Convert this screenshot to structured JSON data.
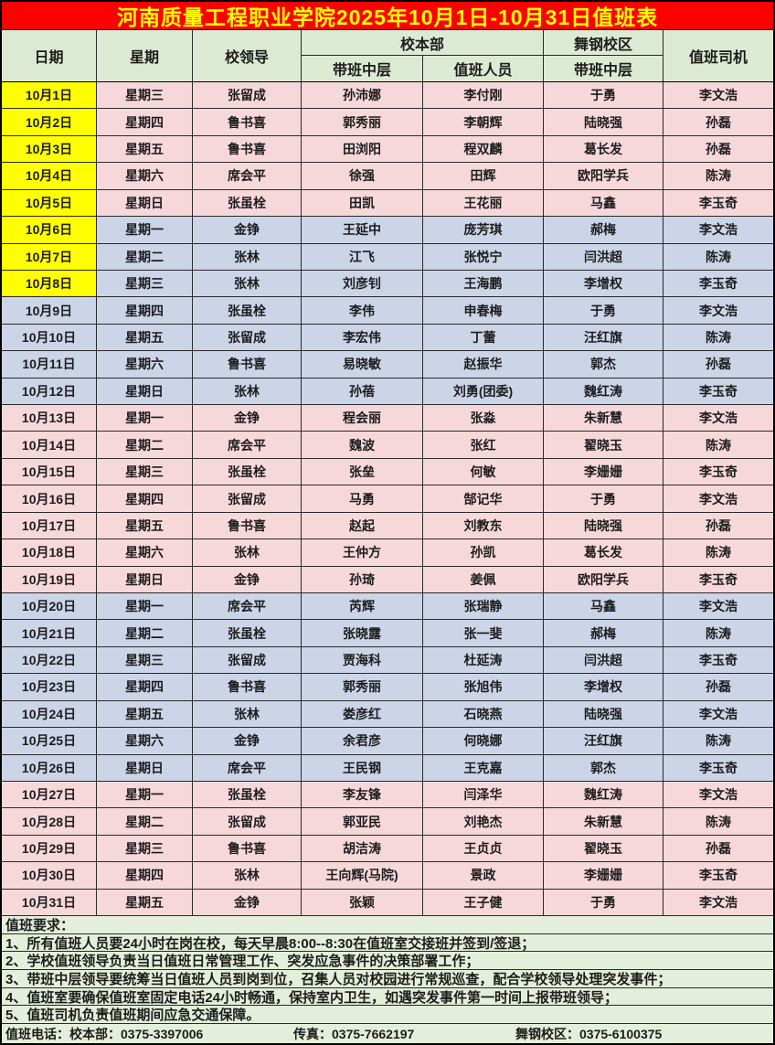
{
  "title": "河南质量工程职业学院2025年10月1日-10月31日值班表",
  "colors": {
    "title_bg": "#fe0000",
    "title_fg": "#ffff00",
    "header_bg": "#dcead3",
    "pink_row": "#f7d8da",
    "blue_row": "#ccd4e8",
    "yellow_date": "#ffff00",
    "notes_bg": "#e3efda"
  },
  "header": {
    "date": "日期",
    "weekday": "星期",
    "school_leader": "校领导",
    "main_campus": "校本部",
    "main_mid": "带班中层",
    "main_duty": "值班人员",
    "wugang_campus": "舞钢校区",
    "wugang_mid": "带班中层",
    "driver": "值班司机"
  },
  "rows": [
    {
      "date": "10月1日",
      "weekday": "星期三",
      "leader": "张留成",
      "main_mid": "孙沛娜",
      "main_duty": "李付刚",
      "wugang_mid": "于勇",
      "driver": "李文浩",
      "band": "pink",
      "date_highlight": true
    },
    {
      "date": "10月2日",
      "weekday": "星期四",
      "leader": "鲁书喜",
      "main_mid": "郭秀丽",
      "main_duty": "李朝辉",
      "wugang_mid": "陆晓强",
      "driver": "孙磊",
      "band": "pink",
      "date_highlight": true
    },
    {
      "date": "10月3日",
      "weekday": "星期五",
      "leader": "鲁书喜",
      "main_mid": "田浏阳",
      "main_duty": "程双麟",
      "wugang_mid": "葛长发",
      "driver": "孙磊",
      "band": "pink",
      "date_highlight": true
    },
    {
      "date": "10月4日",
      "weekday": "星期六",
      "leader": "席会平",
      "main_mid": "徐强",
      "main_duty": "田辉",
      "wugang_mid": "欧阳学兵",
      "driver": "陈涛",
      "band": "pink",
      "date_highlight": true
    },
    {
      "date": "10月5日",
      "weekday": "星期日",
      "leader": "张虽栓",
      "main_mid": "田凯",
      "main_duty": "王花丽",
      "wugang_mid": "马鑫",
      "driver": "李玉奇",
      "band": "pink",
      "date_highlight": true
    },
    {
      "date": "10月6日",
      "weekday": "星期一",
      "leader": "金铮",
      "main_mid": "王延中",
      "main_duty": "庞芳琪",
      "wugang_mid": "郝梅",
      "driver": "李文浩",
      "band": "blue",
      "date_highlight": true
    },
    {
      "date": "10月7日",
      "weekday": "星期二",
      "leader": "张林",
      "main_mid": "江飞",
      "main_duty": "张悦宁",
      "wugang_mid": "闫洪超",
      "driver": "陈涛",
      "band": "blue",
      "date_highlight": true
    },
    {
      "date": "10月8日",
      "weekday": "星期三",
      "leader": "张林",
      "main_mid": "刘彦钊",
      "main_duty": "王海鹏",
      "wugang_mid": "李增权",
      "driver": "李玉奇",
      "band": "blue",
      "date_highlight": true
    },
    {
      "date": "10月9日",
      "weekday": "星期四",
      "leader": "张虽栓",
      "main_mid": "李伟",
      "main_duty": "申春梅",
      "wugang_mid": "于勇",
      "driver": "李文浩",
      "band": "blue",
      "date_highlight": false
    },
    {
      "date": "10月10日",
      "weekday": "星期五",
      "leader": "张留成",
      "main_mid": "李宏伟",
      "main_duty": "丁蕾",
      "wugang_mid": "汪红旗",
      "driver": "陈涛",
      "band": "blue",
      "date_highlight": false
    },
    {
      "date": "10月11日",
      "weekday": "星期六",
      "leader": "鲁书喜",
      "main_mid": "易晓敏",
      "main_duty": "赵振华",
      "wugang_mid": "郭杰",
      "driver": "孙磊",
      "band": "blue",
      "date_highlight": false
    },
    {
      "date": "10月12日",
      "weekday": "星期日",
      "leader": "张林",
      "main_mid": "孙蓓",
      "main_duty": "刘勇(团委)",
      "wugang_mid": "魏红涛",
      "driver": "李玉奇",
      "band": "blue",
      "date_highlight": false
    },
    {
      "date": "10月13日",
      "weekday": "星期一",
      "leader": "金铮",
      "main_mid": "程会丽",
      "main_duty": "张淼",
      "wugang_mid": "朱新慧",
      "driver": "李文浩",
      "band": "pink",
      "date_highlight": false
    },
    {
      "date": "10月14日",
      "weekday": "星期二",
      "leader": "席会平",
      "main_mid": "魏波",
      "main_duty": "张红",
      "wugang_mid": "翟晓玉",
      "driver": "陈涛",
      "band": "pink",
      "date_highlight": false
    },
    {
      "date": "10月15日",
      "weekday": "星期三",
      "leader": "张虽栓",
      "main_mid": "张垒",
      "main_duty": "何敏",
      "wugang_mid": "李姗姗",
      "driver": "李玉奇",
      "band": "pink",
      "date_highlight": false
    },
    {
      "date": "10月16日",
      "weekday": "星期四",
      "leader": "张留成",
      "main_mid": "马勇",
      "main_duty": "郜记华",
      "wugang_mid": "于勇",
      "driver": "李文浩",
      "band": "pink",
      "date_highlight": false
    },
    {
      "date": "10月17日",
      "weekday": "星期五",
      "leader": "鲁书喜",
      "main_mid": "赵起",
      "main_duty": "刘教东",
      "wugang_mid": "陆晓强",
      "driver": "孙磊",
      "band": "pink",
      "date_highlight": false
    },
    {
      "date": "10月18日",
      "weekday": "星期六",
      "leader": "张林",
      "main_mid": "王仲方",
      "main_duty": "孙凯",
      "wugang_mid": "葛长发",
      "driver": "陈涛",
      "band": "pink",
      "date_highlight": false
    },
    {
      "date": "10月19日",
      "weekday": "星期日",
      "leader": "金铮",
      "main_mid": "孙琦",
      "main_duty": "姜佩",
      "wugang_mid": "欧阳学兵",
      "driver": "李玉奇",
      "band": "pink",
      "date_highlight": false
    },
    {
      "date": "10月20日",
      "weekday": "星期一",
      "leader": "席会平",
      "main_mid": "芮辉",
      "main_duty": "张瑞静",
      "wugang_mid": "马鑫",
      "driver": "李文浩",
      "band": "blue",
      "date_highlight": false
    },
    {
      "date": "10月21日",
      "weekday": "星期二",
      "leader": "张虽栓",
      "main_mid": "张晓露",
      "main_duty": "张一斐",
      "wugang_mid": "郝梅",
      "driver": "陈涛",
      "band": "blue",
      "date_highlight": false
    },
    {
      "date": "10月22日",
      "weekday": "星期三",
      "leader": "张留成",
      "main_mid": "贾海科",
      "main_duty": "杜延涛",
      "wugang_mid": "闫洪超",
      "driver": "李玉奇",
      "band": "blue",
      "date_highlight": false
    },
    {
      "date": "10月23日",
      "weekday": "星期四",
      "leader": "鲁书喜",
      "main_mid": "郭秀丽",
      "main_duty": "张旭伟",
      "wugang_mid": "李增权",
      "driver": "孙磊",
      "band": "blue",
      "date_highlight": false
    },
    {
      "date": "10月24日",
      "weekday": "星期五",
      "leader": "张林",
      "main_mid": "娄彦红",
      "main_duty": "石晓燕",
      "wugang_mid": "陆晓强",
      "driver": "李文浩",
      "band": "blue",
      "date_highlight": false
    },
    {
      "date": "10月25日",
      "weekday": "星期六",
      "leader": "金铮",
      "main_mid": "余君彦",
      "main_duty": "何晓娜",
      "wugang_mid": "汪红旗",
      "driver": "陈涛",
      "band": "blue",
      "date_highlight": false
    },
    {
      "date": "10月26日",
      "weekday": "星期日",
      "leader": "席会平",
      "main_mid": "王民钢",
      "main_duty": "王克嘉",
      "wugang_mid": "郭杰",
      "driver": "李玉奇",
      "band": "blue",
      "date_highlight": false
    },
    {
      "date": "10月27日",
      "weekday": "星期一",
      "leader": "张虽栓",
      "main_mid": "李友锋",
      "main_duty": "闫泽华",
      "wugang_mid": "魏红涛",
      "driver": "李文浩",
      "band": "pink",
      "date_highlight": false
    },
    {
      "date": "10月28日",
      "weekday": "星期二",
      "leader": "张留成",
      "main_mid": "郭亚民",
      "main_duty": "刘艳杰",
      "wugang_mid": "朱新慧",
      "driver": "陈涛",
      "band": "pink",
      "date_highlight": false
    },
    {
      "date": "10月29日",
      "weekday": "星期三",
      "leader": "鲁书喜",
      "main_mid": "胡洁涛",
      "main_duty": "王贞贞",
      "wugang_mid": "翟晓玉",
      "driver": "孙磊",
      "band": "pink",
      "date_highlight": false
    },
    {
      "date": "10月30日",
      "weekday": "星期四",
      "leader": "张林",
      "main_mid": "王向辉(马院)",
      "main_duty": "景政",
      "wugung_mid": "",
      "wugang_mid": "李姗姗",
      "driver": "李玉奇",
      "band": "pink",
      "date_highlight": false
    },
    {
      "date": "10月31日",
      "weekday": "星期五",
      "leader": "金铮",
      "main_mid": "张颖",
      "main_duty": "王子健",
      "wugang_mid": "于勇",
      "driver": "李文浩",
      "band": "pink",
      "date_highlight": false
    }
  ],
  "notes": {
    "heading": "值班要求：",
    "items": [
      "1、所有值班人员要24小时在岗在校，每天早晨8:00--8:30在值班室交接班并签到/签退；",
      "2、学校值班领导负责当日值班日常管理工作、突发应急事件的决策部署工作；",
      "3、带班中层领导要统筹当日值班人员到岗到位，召集人员对校园进行常规巡查，配合学校领导处理突发事件；",
      "4、值班室要确保值班室固定电话24小时畅通，保持室内卫生，如遇突发事件第一时间上报带班领导；",
      "5、值班司机负责值班期间应急交通保障。"
    ]
  },
  "footer": {
    "phone_main": "值班电话：校本部：0375-3397006",
    "fax": "传真：0375-7662197",
    "wugang": "舞钢校区：0375-6100375"
  }
}
